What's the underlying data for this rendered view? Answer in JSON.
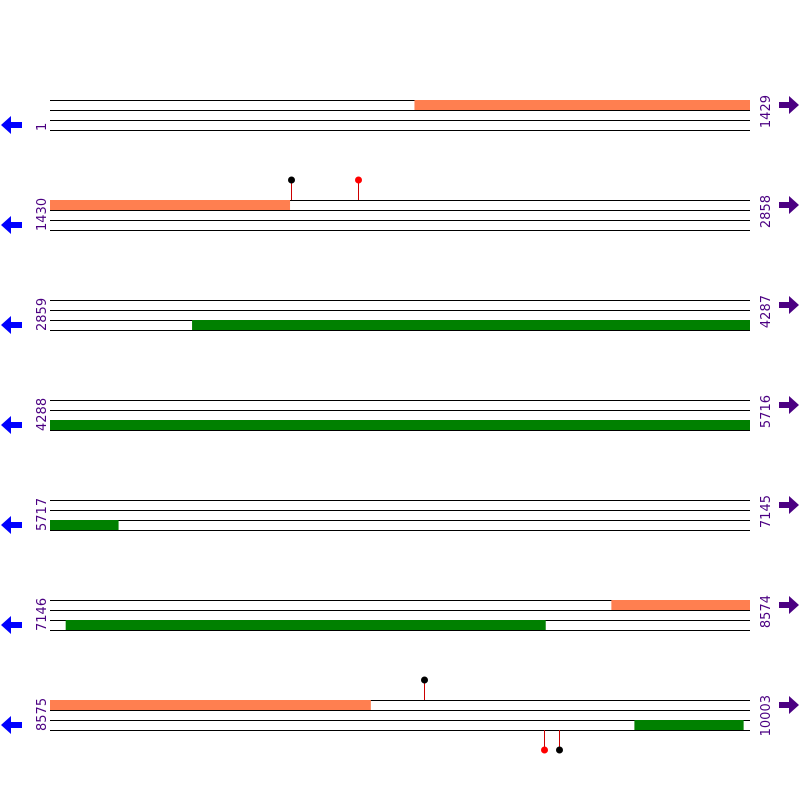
{
  "colors": {
    "track_line": "#000000",
    "orange_feature": "#ff7f50",
    "green_feature": "#008000",
    "left_arrow": "#0000ff",
    "right_arrow": "#4b0082",
    "coord_text": "#4b0082",
    "marker_red": "#ff0000",
    "marker_black": "#000000"
  },
  "icons": {
    "left": "arrow-left-icon",
    "right": "arrow-right-icon"
  },
  "rows": [
    {
      "start_label": "1",
      "end_label": "1429",
      "start": 1,
      "end": 1429,
      "features": [
        {
          "track": 0,
          "from": 745,
          "to": 1429,
          "color": "orange"
        }
      ],
      "markers": []
    },
    {
      "start_label": "1430",
      "end_label": "2858",
      "start": 1430,
      "end": 2858,
      "features": [
        {
          "track": 0,
          "from": 1430,
          "to": 1919,
          "color": "orange"
        }
      ],
      "markers": [
        {
          "pos": 1921,
          "side": "top",
          "color": "black"
        },
        {
          "pos": 2058,
          "side": "top",
          "color": "red"
        }
      ]
    },
    {
      "start_label": "2859",
      "end_label": "4287",
      "start": 2859,
      "end": 4287,
      "features": [
        {
          "track": 2,
          "from": 3149,
          "to": 4287,
          "color": "green"
        }
      ],
      "markers": []
    },
    {
      "start_label": "4288",
      "end_label": "5716",
      "start": 4288,
      "end": 5716,
      "features": [
        {
          "track": 2,
          "from": 4288,
          "to": 5716,
          "color": "green"
        }
      ],
      "markers": []
    },
    {
      "start_label": "5717",
      "end_label": "7145",
      "start": 5717,
      "end": 7145,
      "features": [
        {
          "track": 2,
          "from": 5717,
          "to": 5856,
          "color": "green"
        }
      ],
      "markers": []
    },
    {
      "start_label": "7146",
      "end_label": "8574",
      "start": 7146,
      "end": 8574,
      "features": [
        {
          "track": 0,
          "from": 8292,
          "to": 8574,
          "color": "orange"
        },
        {
          "track": 2,
          "from": 7178,
          "to": 8157,
          "color": "green"
        }
      ],
      "markers": []
    },
    {
      "start_label": "8575",
      "end_label": "10003",
      "start": 8575,
      "end": 10003,
      "features": [
        {
          "track": 0,
          "from": 8575,
          "to": 9229,
          "color": "orange"
        },
        {
          "track": 2,
          "from": 9768,
          "to": 9990,
          "color": "green"
        }
      ],
      "markers": [
        {
          "pos": 9339,
          "side": "top",
          "color": "black"
        },
        {
          "pos": 9584,
          "side": "bottom",
          "color": "red"
        },
        {
          "pos": 9615,
          "side": "bottom",
          "color": "black"
        }
      ]
    }
  ]
}
